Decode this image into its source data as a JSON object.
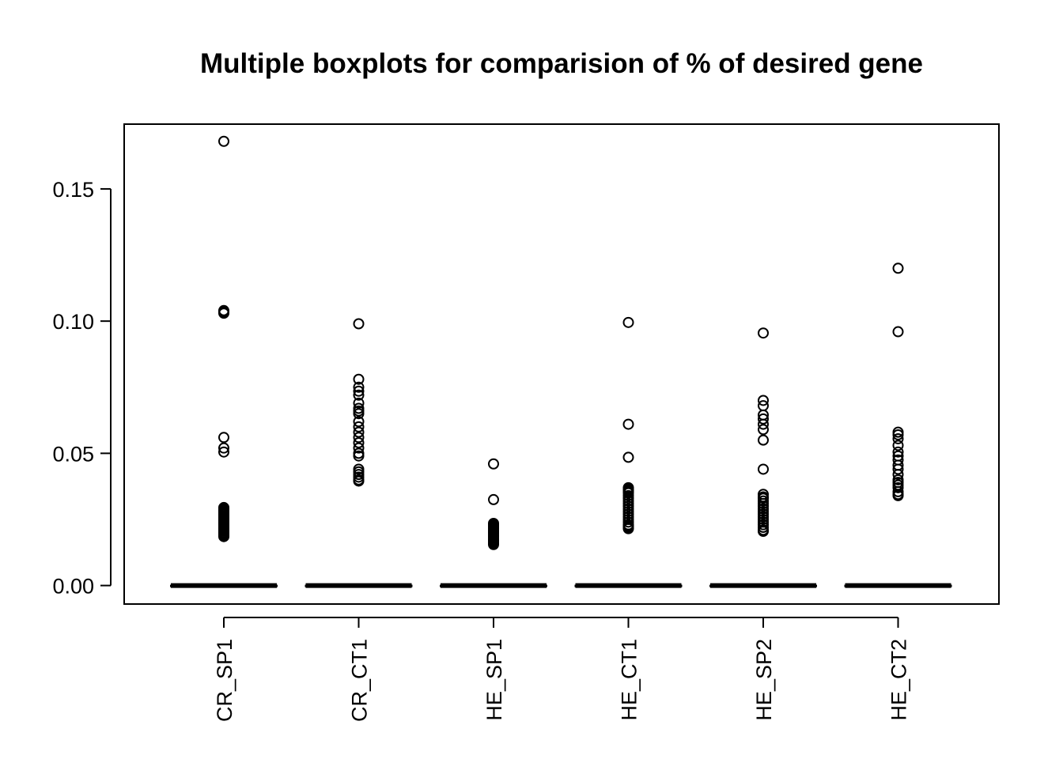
{
  "chart_data": {
    "type": "box",
    "title": "Multiple boxplots for comparision of % of desired gene",
    "xlabel": "",
    "ylabel": "",
    "categories": [
      "CR_SP1",
      "CR_CT1",
      "HE_SP1",
      "HE_CT1",
      "HE_SP2",
      "HE_CT2"
    ],
    "ylim": [
      -0.007,
      0.1745
    ],
    "yticks": [
      0.0,
      0.05,
      0.1,
      0.15
    ],
    "ytick_labels": [
      "0.00",
      "0.05",
      "0.10",
      "0.15"
    ],
    "x_label_orientation": "vertical",
    "grid": false,
    "legend": "none",
    "series": [
      {
        "median": 0.0,
        "q1": 0.0,
        "q3": 0.0,
        "whisker_low": 0.0,
        "whisker_high": 0.0,
        "outliers": [
          0.168,
          0.104,
          0.1035,
          0.103,
          0.056,
          0.052,
          0.0505,
          0.0295,
          0.029,
          0.0285,
          0.028,
          0.0275,
          0.027,
          0.0265,
          0.026,
          0.0255,
          0.025,
          0.0245,
          0.024,
          0.0235,
          0.023,
          0.0225,
          0.022,
          0.0215,
          0.021,
          0.0205,
          0.02,
          0.0195,
          0.019,
          0.0185
        ]
      },
      {
        "median": 0.0,
        "q1": 0.0,
        "q3": 0.0,
        "whisker_low": 0.0,
        "whisker_high": 0.0,
        "outliers": [
          0.099,
          0.078,
          0.075,
          0.0735,
          0.072,
          0.069,
          0.067,
          0.066,
          0.065,
          0.062,
          0.06,
          0.058,
          0.056,
          0.054,
          0.052,
          0.05,
          0.049,
          0.044,
          0.043,
          0.042,
          0.041,
          0.04,
          0.0395
        ]
      },
      {
        "median": 0.0,
        "q1": 0.0,
        "q3": 0.0,
        "whisker_low": 0.0,
        "whisker_high": 0.0,
        "outliers": [
          0.046,
          0.0325,
          0.0235,
          0.023,
          0.0225,
          0.022,
          0.0215,
          0.021,
          0.0205,
          0.02,
          0.0195,
          0.019,
          0.0185,
          0.018,
          0.0175,
          0.017,
          0.0165,
          0.016,
          0.0155
        ]
      },
      {
        "median": 0.0,
        "q1": 0.0,
        "q3": 0.0,
        "whisker_low": 0.0,
        "whisker_high": 0.0,
        "outliers": [
          0.0995,
          0.061,
          0.0485,
          0.037,
          0.0365,
          0.036,
          0.0355,
          0.035,
          0.034,
          0.033,
          0.032,
          0.031,
          0.03,
          0.029,
          0.028,
          0.027,
          0.026,
          0.025,
          0.024,
          0.023,
          0.0225,
          0.022,
          0.0215
        ]
      },
      {
        "median": 0.0,
        "q1": 0.0,
        "q3": 0.0,
        "whisker_low": 0.0,
        "whisker_high": 0.0,
        "outliers": [
          0.0955,
          0.07,
          0.068,
          0.0645,
          0.063,
          0.061,
          0.059,
          0.055,
          0.044,
          0.0345,
          0.0335,
          0.033,
          0.032,
          0.031,
          0.03,
          0.029,
          0.028,
          0.027,
          0.026,
          0.025,
          0.024,
          0.023,
          0.022,
          0.021,
          0.0205
        ]
      },
      {
        "median": 0.0,
        "q1": 0.0,
        "q3": 0.0,
        "whisker_low": 0.0,
        "whisker_high": 0.0,
        "outliers": [
          0.12,
          0.096,
          0.058,
          0.057,
          0.0555,
          0.053,
          0.0505,
          0.049,
          0.0475,
          0.0455,
          0.044,
          0.042,
          0.04,
          0.039,
          0.038,
          0.037,
          0.0355,
          0.0345,
          0.034
        ]
      }
    ],
    "colors": {
      "stroke": "#000000",
      "background": "#ffffff"
    }
  }
}
